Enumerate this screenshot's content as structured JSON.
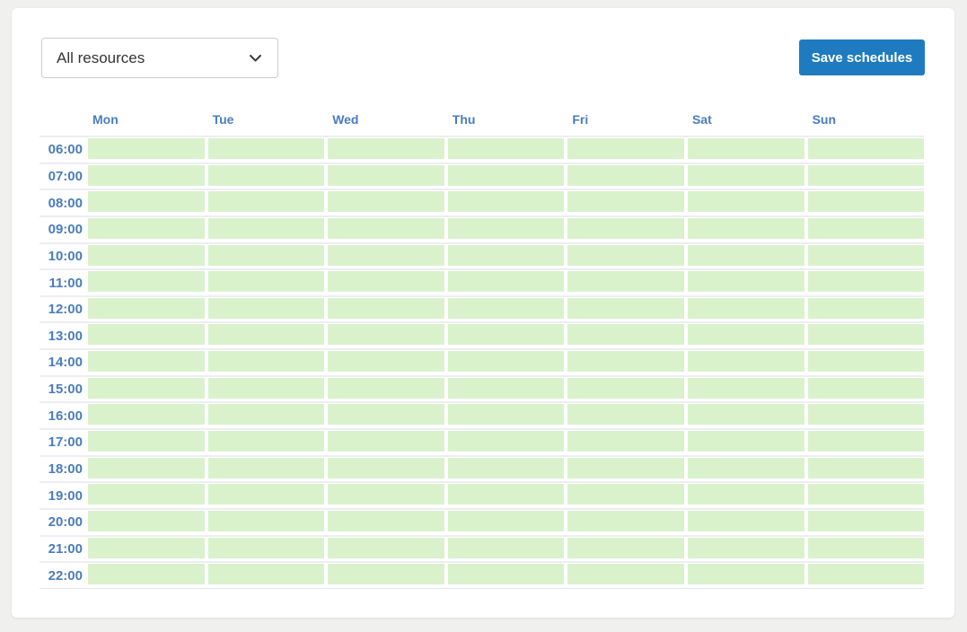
{
  "toolbar": {
    "resource_filter": {
      "value": "All resources"
    },
    "save_button_label": "Save schedules"
  },
  "schedule": {
    "days": [
      "Mon",
      "Tue",
      "Wed",
      "Thu",
      "Fri",
      "Sat",
      "Sun"
    ],
    "times": [
      "06:00",
      "07:00",
      "08:00",
      "09:00",
      "10:00",
      "11:00",
      "12:00",
      "13:00",
      "14:00",
      "15:00",
      "16:00",
      "17:00",
      "18:00",
      "19:00",
      "20:00",
      "21:00",
      "22:00"
    ],
    "slot_status": "available",
    "colors": {
      "slot_available": "#d9f2cc",
      "label_blue": "#4a7cbd",
      "button_blue": "#1e7bbf",
      "row_separator": "#ededf4",
      "page_background": "#f0f0ee"
    }
  }
}
